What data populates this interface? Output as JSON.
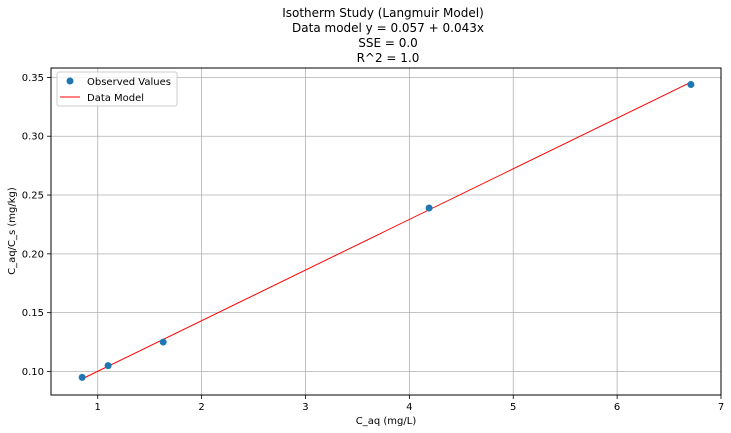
{
  "chart_data": {
    "type": "scatter",
    "title_lines": [
      "Isotherm Study (Langmuir Model)",
      "Data model y = 0.057 + 0.043x",
      "SSE = 0.0",
      "R^2 = 1.0"
    ],
    "xlabel": "C_aq (mg/L)",
    "ylabel": "C_aq/C_s  (mg/kg)",
    "xlim": [
      0.55,
      7.0
    ],
    "ylim": [
      0.08,
      0.358
    ],
    "x_ticks": [
      1,
      2,
      3,
      4,
      5,
      6,
      7
    ],
    "x_tick_labels": [
      "1",
      "2",
      "3",
      "4",
      "5",
      "6",
      "7"
    ],
    "y_ticks": [
      0.1,
      0.15,
      0.2,
      0.25,
      0.3,
      0.35
    ],
    "y_tick_labels": [
      "0.10",
      "0.15",
      "0.20",
      "0.25",
      "0.30",
      "0.35"
    ],
    "grid": true,
    "legend_placement": "top-left",
    "series": [
      {
        "name": "Observed Values",
        "kind": "scatter",
        "color": "#1f77b4",
        "points": [
          {
            "x": 0.85,
            "y": 0.095
          },
          {
            "x": 1.1,
            "y": 0.105
          },
          {
            "x": 1.63,
            "y": 0.125
          },
          {
            "x": 4.19,
            "y": 0.239
          },
          {
            "x": 6.71,
            "y": 0.344
          }
        ]
      },
      {
        "name": "Data Model",
        "kind": "line",
        "color": "#ff0000",
        "points": [
          {
            "x": 0.85,
            "y": 0.0937
          },
          {
            "x": 6.71,
            "y": 0.3459
          }
        ]
      }
    ]
  }
}
